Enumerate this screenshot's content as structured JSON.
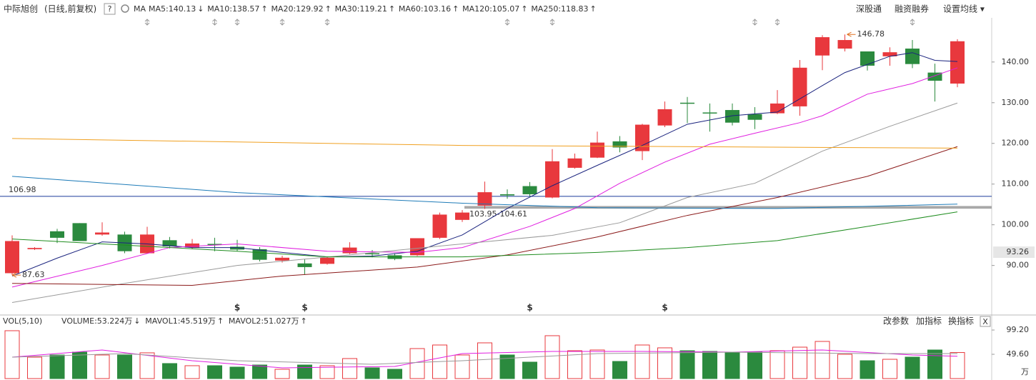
{
  "header": {
    "title": "中际旭创",
    "mode": "(日线,前复权)",
    "help": "?",
    "ma_label": "MA",
    "buttons": [
      "深股通",
      "融资融券",
      "设置均线 ▾"
    ]
  },
  "chart_data": {
    "type": "candlestick",
    "ylim": [
      78,
      150.5
    ],
    "yticks": [
      {
        "value": 90,
        "label": "90.00"
      },
      {
        "value": 100,
        "label": "100.00"
      },
      {
        "value": 110,
        "label": "110.00"
      },
      {
        "value": 120,
        "label": "120.00"
      },
      {
        "value": 130,
        "label": "130.00"
      },
      {
        "value": 140,
        "label": "140.00"
      }
    ],
    "up_color": "#e8383d",
    "down_color": "#2b8a3e",
    "candles": {
      "open": [
        88.1,
        94.0,
        98.4,
        100.4,
        97.6,
        97.6,
        93.0,
        96.2,
        94.4,
        95.3,
        94.6,
        94.0,
        91.2,
        90.5,
        90.4,
        93.0,
        93.0,
        92.5,
        92.5,
        96.8,
        101.2,
        104.7,
        107.5,
        109.5,
        106.7,
        114.0,
        116.5,
        120.5,
        118.1,
        124.4,
        130.0,
        127.6,
        128.2,
        127.2,
        127.4,
        129.1,
        141.6,
        143.3,
        142.6,
        141.4,
        143.3,
        137.4,
        134.7
      ],
      "high": [
        97.4,
        94.5,
        99.0,
        100.4,
        100.6,
        98.3,
        99.5,
        97.0,
        96.5,
        96.8,
        96.3,
        94.5,
        92.4,
        91.5,
        92.2,
        95.7,
        93.8,
        93.0,
        96.7,
        103.0,
        103.6,
        110.6,
        108.7,
        110.5,
        118.6,
        117.5,
        122.9,
        121.8,
        124.8,
        130.3,
        131.4,
        129.8,
        129.8,
        128.9,
        133.1,
        140.5,
        146.6,
        146.78,
        142.6,
        143.6,
        145.4,
        139.6,
        145.6
      ],
      "low": [
        87.63,
        93.8,
        95.5,
        96.0,
        97.3,
        93.0,
        93.0,
        94.2,
        94.0,
        93.5,
        93.5,
        91.0,
        90.7,
        87.7,
        90.2,
        92.8,
        92.0,
        91.3,
        92.3,
        96.5,
        100.7,
        103.9,
        106.4,
        107.0,
        106.5,
        113.8,
        116.4,
        117.8,
        115.9,
        124.0,
        125.0,
        122.9,
        124.4,
        123.5,
        127.2,
        126.8,
        138.0,
        142.6,
        137.9,
        139.1,
        138.5,
        130.3,
        133.8
      ],
      "close": [
        96.0,
        94.3,
        96.8,
        96.0,
        98.1,
        93.5,
        97.6,
        94.7,
        95.4,
        95.1,
        93.9,
        91.4,
        91.9,
        89.6,
        91.9,
        94.4,
        92.9,
        91.6,
        96.7,
        102.5,
        103.0,
        108.0,
        107.2,
        107.5,
        115.6,
        116.3,
        120.2,
        119.0,
        124.6,
        128.4,
        129.8,
        127.4,
        125.1,
        125.8,
        129.8,
        138.6,
        146.1,
        145.4,
        139.1,
        142.4,
        139.5,
        135.4,
        145.1
      ]
    },
    "series": [
      {
        "name": "MA5",
        "legend": "MA5:140.13",
        "arrow": "↓",
        "color": "#1a237e",
        "x": [
          0,
          2,
          4,
          6,
          8,
          10,
          12,
          14,
          16,
          18,
          20,
          22,
          24,
          26,
          28,
          30,
          32,
          34,
          36,
          37,
          39,
          40,
          41,
          42
        ],
        "values": [
          87.4,
          91.8,
          95.8,
          95.3,
          94.4,
          94.4,
          93.2,
          92.1,
          92.3,
          93.5,
          97.5,
          104.0,
          109.6,
          114.6,
          119.5,
          124.7,
          126.8,
          127.7,
          134.2,
          137.4,
          141.4,
          142.3,
          140.4,
          140.13
        ]
      },
      {
        "name": "MA10",
        "legend": "MA10:138.57",
        "arrow": "↑",
        "color": "#e01ee0",
        "x": [
          0,
          4,
          7,
          10,
          14,
          18,
          20,
          23,
          25,
          27,
          29,
          31,
          33,
          35,
          36,
          38,
          40,
          42
        ],
        "values": [
          84.7,
          90.0,
          94.4,
          95.3,
          93.5,
          93.2,
          94.4,
          99.6,
          104.0,
          110.2,
          115.4,
          119.8,
          122.5,
          125.1,
          126.8,
          132.1,
          134.7,
          138.57
        ]
      },
      {
        "name": "MA20",
        "legend": "MA20:129.92",
        "arrow": "↑",
        "color": "#9a9a9a",
        "x": [
          0,
          5,
          10,
          15,
          20,
          24,
          27,
          30,
          33,
          36,
          39,
          42
        ],
        "values": [
          80.9,
          85.6,
          90.0,
          92.6,
          95.3,
          97.4,
          100.5,
          106.7,
          110.2,
          118.1,
          124.2,
          129.92
        ]
      },
      {
        "name": "MA30",
        "legend": "MA30:119.21",
        "arrow": "↑",
        "color": "#8b1a1a",
        "x": [
          0,
          8,
          12,
          18,
          22,
          26,
          30,
          34,
          38,
          42
        ],
        "values": [
          85.6,
          85.1,
          87.4,
          89.6,
          92.6,
          97.0,
          102.3,
          106.7,
          111.9,
          119.21
        ]
      },
      {
        "name": "MA60",
        "legend": "MA60:103.16",
        "arrow": "↑",
        "color": "#1e8c1e",
        "x": [
          0,
          10,
          14,
          20,
          26,
          30,
          34,
          38,
          42
        ],
        "values": [
          96.5,
          93.5,
          92.1,
          92.1,
          93.2,
          94.4,
          96.1,
          99.6,
          103.16
        ]
      },
      {
        "name": "MA120",
        "legend": "MA120:105.07",
        "arrow": "↑",
        "color": "#1e7bb8",
        "x": [
          0,
          10,
          20,
          26,
          34,
          42
        ],
        "values": [
          111.9,
          107.9,
          105.3,
          104.2,
          104.0,
          105.07
        ]
      },
      {
        "name": "MA250",
        "legend": "MA250:118.83",
        "arrow": "↑",
        "color": "#f0a020",
        "x": [
          0,
          20,
          42
        ],
        "values": [
          121.2,
          119.5,
          118.83
        ]
      }
    ],
    "hline": {
      "value": 106.98,
      "label": "106.98",
      "color": "#1a3a9a"
    },
    "band": {
      "values": [
        103.95,
        104.61
      ],
      "label": "103.95-104.61"
    },
    "low_note": {
      "value": 87.63,
      "label": "87.63"
    },
    "high_note": {
      "value": 146.78,
      "label": "146.78"
    },
    "cursor_price": 93.26,
    "dividend_label": "$"
  },
  "volume": {
    "title": "VOL(5,10)",
    "legend": [
      {
        "label": "VOLUME:53.224万",
        "arrow": "↓",
        "color": "#1a237e"
      },
      {
        "label": "MAVOL1:45.519万",
        "arrow": "↑",
        "color": "#e01ee0"
      },
      {
        "label": "MAVOL2:51.027万",
        "arrow": "↑",
        "color": "#888888"
      }
    ],
    "buttons": [
      "改参数",
      "加指标",
      "换指标"
    ],
    "close": "X",
    "ylim": [
      0,
      108
    ],
    "yticks": [
      {
        "value": 49.6,
        "label": "49.60"
      },
      {
        "value": 99.2,
        "label": "99.20"
      }
    ],
    "unit": "万",
    "values": [
      97.8,
      43.8,
      48.2,
      54,
      48.2,
      48.2,
      52.6,
      30.7,
      26.3,
      26.3,
      23.4,
      27.7,
      19,
      27.7,
      26.3,
      40.9,
      21.9,
      19,
      61.3,
      68.6,
      48.2,
      73,
      48.2,
      33.6,
      87.6,
      56.9,
      58.4,
      35,
      68.6,
      62.8,
      56.9,
      55.5,
      54,
      54,
      56.9,
      64.2,
      75.9,
      49.6,
      36.5,
      39.4,
      43.8,
      58.4,
      53.224
    ],
    "series": [
      {
        "name": "MAVOL1",
        "color": "#e01ee0",
        "x": [
          0,
          4,
          8,
          12,
          17,
          20,
          24,
          28,
          32,
          36,
          40,
          42
        ],
        "values": [
          43.8,
          58.4,
          36.5,
          21.9,
          24.8,
          51,
          55.5,
          55.5,
          54,
          58.4,
          48.2,
          45.519
        ]
      },
      {
        "name": "MAVOL2",
        "color": "#999999",
        "x": [
          0,
          5,
          10,
          16,
          20,
          26,
          32,
          38,
          42
        ],
        "values": [
          43.8,
          51,
          36.5,
          29.2,
          36.5,
          51,
          54,
          51,
          51.027
        ]
      }
    ]
  }
}
